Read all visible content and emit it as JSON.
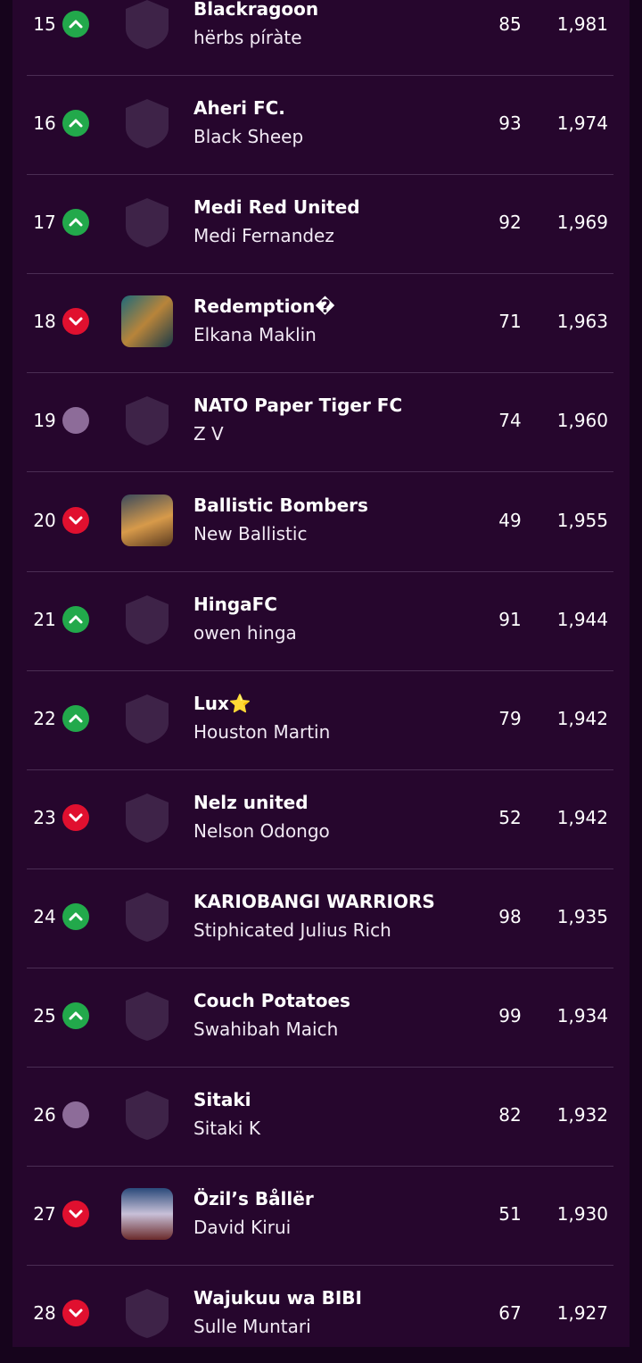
{
  "table": {
    "rows": [
      {
        "rank": 15,
        "movement": "up",
        "badge": "default",
        "team": "Blackragoon",
        "manager": "hërbs píràte",
        "gw_points": 85,
        "total": "1,981"
      },
      {
        "rank": 16,
        "movement": "up",
        "badge": "default",
        "team": "Aheri FC.",
        "manager": "Black Sheep",
        "gw_points": 93,
        "total": "1,974"
      },
      {
        "rank": 17,
        "movement": "up",
        "badge": "default",
        "team": "Medi Red United",
        "manager": "Medi Fernandez",
        "gw_points": 92,
        "total": "1,969"
      },
      {
        "rank": 18,
        "movement": "down",
        "badge": "image",
        "team": "Redemption�",
        "manager": "Elkana Maklin",
        "gw_points": 71,
        "total": "1,963"
      },
      {
        "rank": 19,
        "movement": "same",
        "badge": "default",
        "team": "NATO Paper Tiger FC",
        "manager": "Z V",
        "gw_points": 74,
        "total": "1,960"
      },
      {
        "rank": 20,
        "movement": "down",
        "badge": "image",
        "team": "Ballistic Bombers",
        "manager": "New Ballistic",
        "gw_points": 49,
        "total": "1,955"
      },
      {
        "rank": 21,
        "movement": "up",
        "badge": "default",
        "team": "HingaFC",
        "manager": "owen hinga",
        "gw_points": 91,
        "total": "1,944"
      },
      {
        "rank": 22,
        "movement": "up",
        "badge": "default",
        "team": "Lux⭐",
        "manager": "Houston Martin",
        "gw_points": 79,
        "total": "1,942"
      },
      {
        "rank": 23,
        "movement": "down",
        "badge": "default",
        "team": "Nelz united",
        "manager": "Nelson Odongo",
        "gw_points": 52,
        "total": "1,942"
      },
      {
        "rank": 24,
        "movement": "up",
        "badge": "default",
        "team": "KARIOBANGI WARRIORS",
        "manager": "Stiphicated Julius Rich",
        "gw_points": 98,
        "total": "1,935"
      },
      {
        "rank": 25,
        "movement": "up",
        "badge": "default",
        "team": "Couch Potatoes",
        "manager": "Swahibah Maich",
        "gw_points": 99,
        "total": "1,934"
      },
      {
        "rank": 26,
        "movement": "same",
        "badge": "default",
        "team": "Sitaki",
        "manager": "Sitaki K",
        "gw_points": 82,
        "total": "1,932"
      },
      {
        "rank": 27,
        "movement": "down",
        "badge": "image",
        "team": "Özil’s Bållër",
        "manager": "David Kirui",
        "gw_points": 51,
        "total": "1,930"
      },
      {
        "rank": 28,
        "movement": "down",
        "badge": "default",
        "team": "Wajukuu wa BIBI",
        "manager": "Sulle Muntari",
        "gw_points": 67,
        "total": "1,927"
      }
    ]
  }
}
